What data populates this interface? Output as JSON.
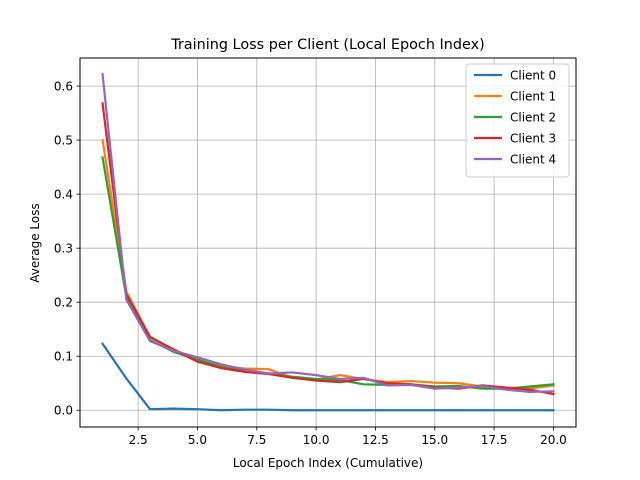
{
  "chart_data": {
    "type": "line",
    "title": "Training Loss per Client (Local Epoch Index)",
    "xlabel": "Local Epoch Index (Cumulative)",
    "ylabel": "Average Loss",
    "xlim": [
      0.05,
      20.95
    ],
    "ylim": [
      -0.031,
      0.652
    ],
    "xticks": [
      2.5,
      5.0,
      7.5,
      10.0,
      12.5,
      15.0,
      17.5,
      20.0
    ],
    "xtick_labels": [
      "2.5",
      "5.0",
      "7.5",
      "10.0",
      "12.5",
      "15.0",
      "17.5",
      "20.0"
    ],
    "yticks": [
      0.0,
      0.1,
      0.2,
      0.3,
      0.4,
      0.5,
      0.6
    ],
    "ytick_labels": [
      "0.0",
      "0.1",
      "0.2",
      "0.3",
      "0.4",
      "0.5",
      "0.6"
    ],
    "grid": true,
    "legend_position": "top-right",
    "x": [
      1,
      2,
      3,
      4,
      5,
      6,
      7,
      8,
      9,
      10,
      11,
      12,
      13,
      14,
      15,
      16,
      17,
      18,
      19,
      20
    ],
    "series": [
      {
        "name": "Client 0",
        "color": "#1f77b4",
        "values": [
          0.123,
          0.059,
          0.002,
          0.003,
          0.002,
          0.0,
          0.001,
          0.001,
          0.0,
          0.0,
          0.0,
          0.0,
          0.0,
          0.0,
          0.0,
          0.0,
          0.0,
          0.0,
          0.0,
          0.0
        ]
      },
      {
        "name": "Client 1",
        "color": "#ff7f0e",
        "values": [
          0.5,
          0.22,
          0.135,
          0.113,
          0.092,
          0.082,
          0.077,
          0.076,
          0.06,
          0.057,
          0.065,
          0.058,
          0.052,
          0.054,
          0.051,
          0.05,
          0.044,
          0.042,
          0.04,
          0.046
        ]
      },
      {
        "name": "Client 2",
        "color": "#2ca02c",
        "values": [
          0.468,
          0.21,
          0.13,
          0.108,
          0.094,
          0.08,
          0.072,
          0.068,
          0.062,
          0.058,
          0.056,
          0.048,
          0.047,
          0.048,
          0.044,
          0.045,
          0.04,
          0.04,
          0.044,
          0.048
        ]
      },
      {
        "name": "Client 3",
        "color": "#d62728",
        "values": [
          0.568,
          0.215,
          0.136,
          0.112,
          0.09,
          0.078,
          0.071,
          0.067,
          0.06,
          0.055,
          0.052,
          0.058,
          0.05,
          0.048,
          0.042,
          0.04,
          0.046,
          0.042,
          0.038,
          0.03
        ]
      },
      {
        "name": "Client 4",
        "color": "#9467bd",
        "values": [
          0.622,
          0.205,
          0.128,
          0.11,
          0.098,
          0.085,
          0.075,
          0.068,
          0.07,
          0.065,
          0.058,
          0.06,
          0.046,
          0.047,
          0.04,
          0.042,
          0.045,
          0.038,
          0.034,
          0.035
        ]
      }
    ]
  }
}
